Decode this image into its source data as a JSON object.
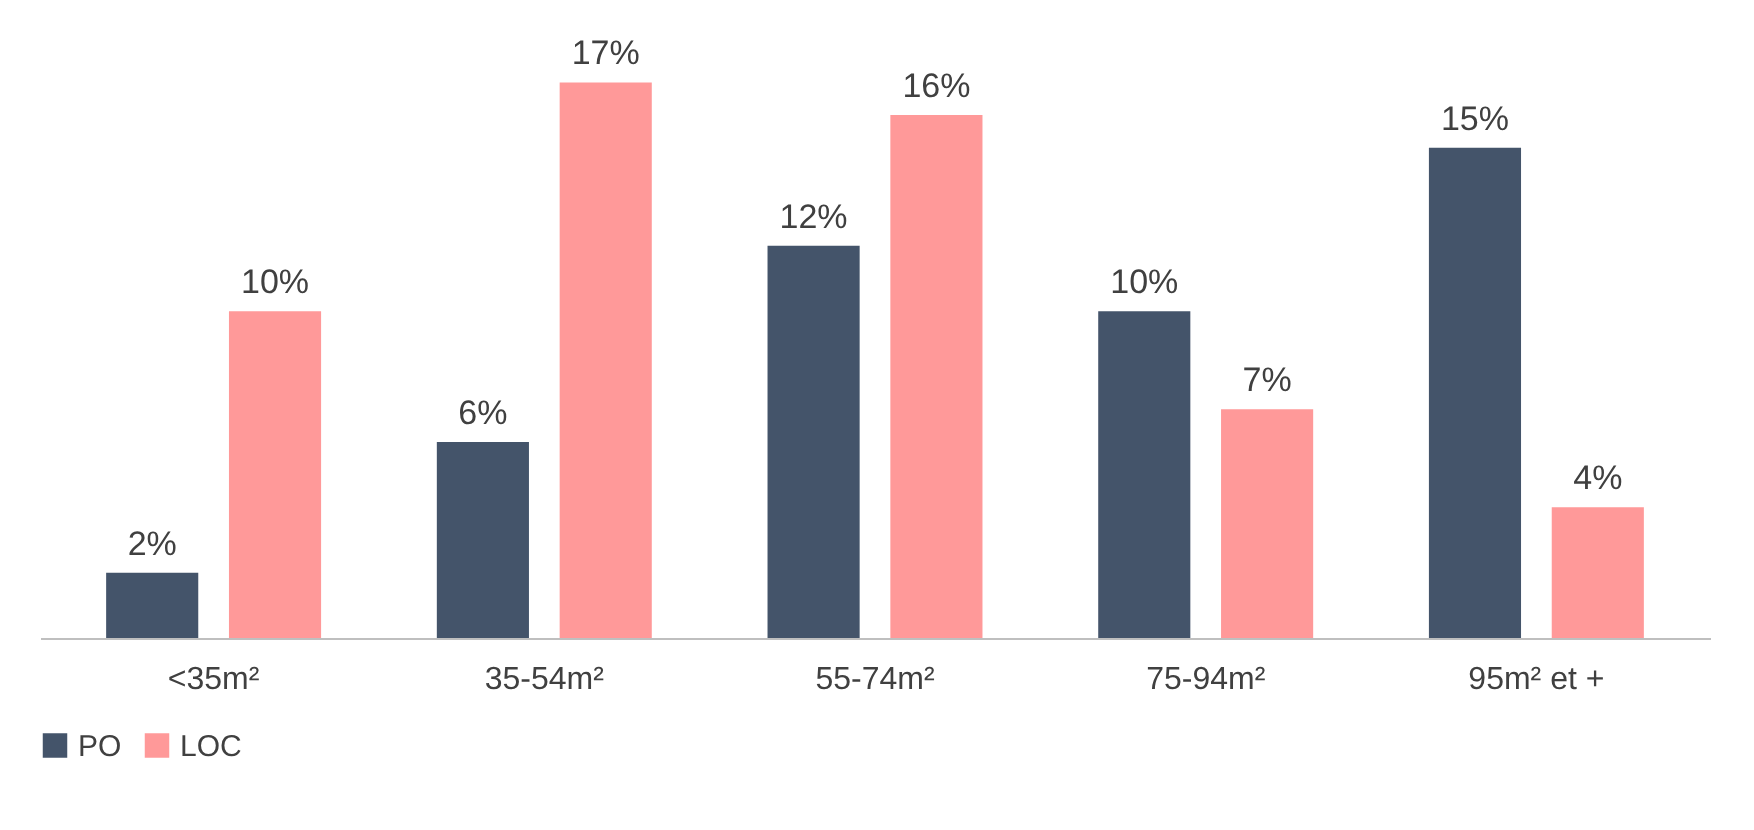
{
  "chart_data": {
    "type": "bar",
    "categories": [
      "<35m²",
      "35-54m²",
      "55-74m²",
      "75-94m²",
      "95m² et +"
    ],
    "series": [
      {
        "name": "PO",
        "color": "#44546a",
        "values": [
          2,
          6,
          12,
          10,
          15
        ],
        "value_labels": [
          "2%",
          "6%",
          "12%",
          "10%",
          "15%"
        ]
      },
      {
        "name": "LOC",
        "color": "#ff9999",
        "values": [
          10,
          17,
          16,
          7,
          4
        ],
        "value_labels": [
          "10%",
          "17%",
          "16%",
          "7%",
          "4%"
        ]
      }
    ],
    "legend": "bottom",
    "grid": false
  }
}
